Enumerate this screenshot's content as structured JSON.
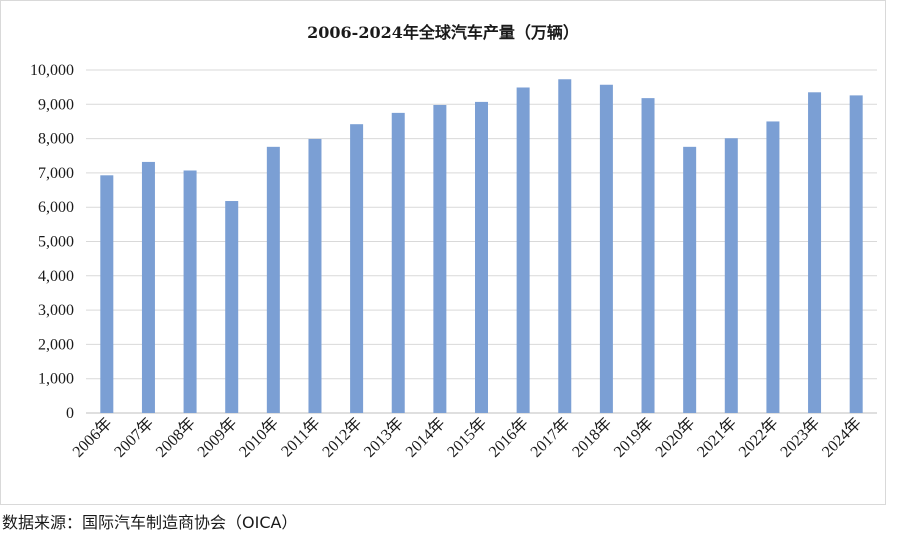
{
  "chart_data": {
    "type": "bar",
    "title": "2006-2024年全球汽车产量（万辆）",
    "xlabel": "",
    "ylabel": "",
    "categories": [
      "2006年",
      "2007年",
      "2008年",
      "2009年",
      "2010年",
      "2011年",
      "2012年",
      "2013年",
      "2014年",
      "2015年",
      "2016年",
      "2017年",
      "2018年",
      "2019年",
      "2020年",
      "2021年",
      "2022年",
      "2023年",
      "2024年"
    ],
    "values": [
      6930,
      7320,
      7070,
      6180,
      7760,
      7990,
      8420,
      8750,
      8980,
      9070,
      9490,
      9730,
      9570,
      9180,
      7760,
      8010,
      8500,
      9350,
      9260
    ],
    "ylim": [
      0,
      10000
    ],
    "yticks": [
      "0",
      "1,000",
      "2,000",
      "3,000",
      "4,000",
      "5,000",
      "6,000",
      "7,000",
      "8,000",
      "9,000",
      "10,000"
    ],
    "grid": true,
    "bar_color": "#7b9fd4",
    "legend": "none"
  },
  "source": "数据来源：国际汽车制造商协会（OICA）"
}
